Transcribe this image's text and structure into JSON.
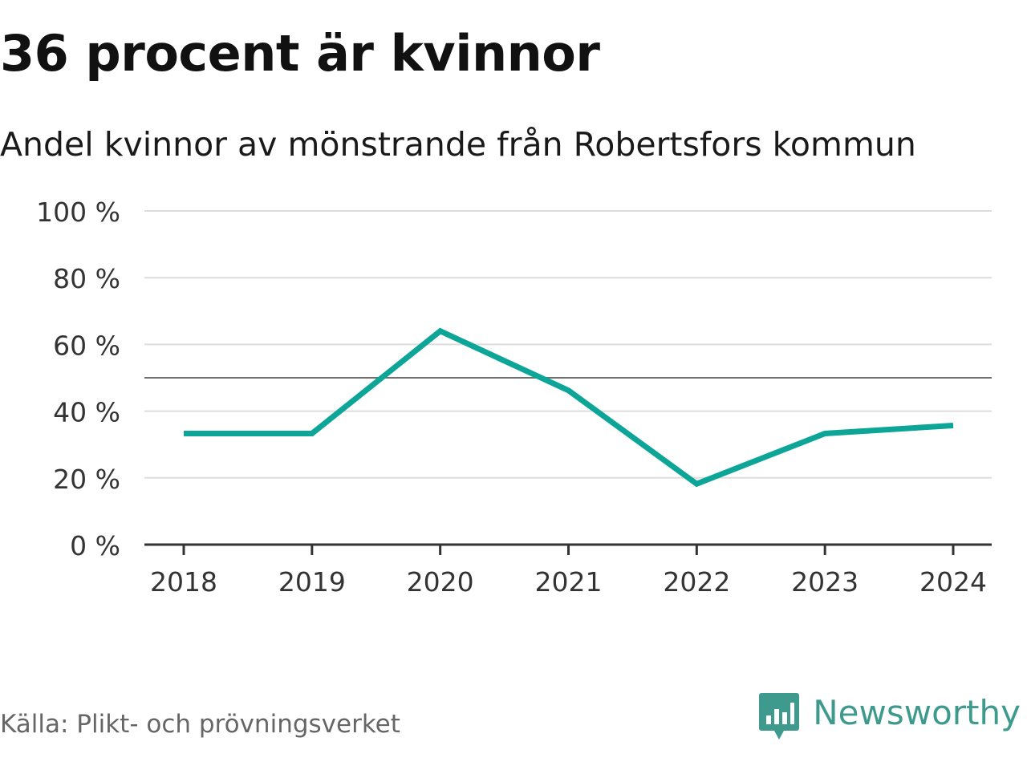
{
  "title": "36 procent är kvinnor",
  "subtitle": "Andel kvinnor av mönstrande från Robertsfors kommun",
  "source": "Källa: Plikt- och prövningsverket",
  "brand": {
    "name": "Newsworthy",
    "icon": "bar-chart-speech-bubble-icon",
    "color": "#3d9a8c"
  },
  "chart_data": {
    "type": "line",
    "categories": [
      "2018",
      "2019",
      "2020",
      "2021",
      "2022",
      "2023",
      "2024"
    ],
    "series": [
      {
        "values": [
          33.3,
          33.3,
          64,
          46.2,
          18.2,
          33.3,
          35.7
        ],
        "color": "#0ca597"
      }
    ],
    "ylim": [
      0,
      100
    ],
    "yticks": [
      0,
      20,
      40,
      60,
      80,
      100
    ],
    "ytick_labels": [
      "0 %",
      "20 %",
      "40 %",
      "60 %",
      "80 %",
      "100 %"
    ],
    "reference_line": 50,
    "xlabel": "",
    "ylabel": "",
    "grid": true
  }
}
